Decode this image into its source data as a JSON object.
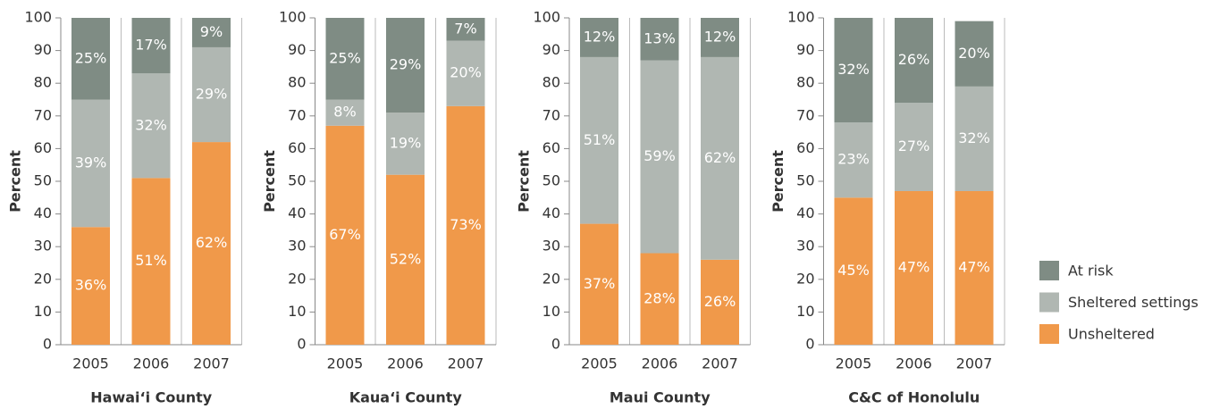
{
  "chart_data": [
    {
      "type": "bar",
      "stacked": true,
      "title": "Hawai‘i County",
      "ylabel": "Percent",
      "categories": [
        "2005",
        "2006",
        "2007"
      ],
      "ylim": [
        0,
        100
      ],
      "yticks": [
        0,
        10,
        20,
        30,
        40,
        50,
        60,
        70,
        80,
        90,
        100
      ],
      "series": [
        {
          "color": "#f0994a",
          "values": [
            36,
            51,
            62
          ],
          "value_labels": [
            "36%",
            "51%",
            "62%"
          ]
        },
        {
          "color": "#b0b7b2",
          "values": [
            39,
            32,
            29
          ],
          "value_labels": [
            "39%",
            "32%",
            "29%"
          ]
        },
        {
          "color": "#7f8c84",
          "values": [
            25,
            17,
            9
          ],
          "value_labels": [
            "25%",
            "17%",
            "9%"
          ]
        }
      ]
    },
    {
      "type": "bar",
      "stacked": true,
      "title": "Kaua‘i County",
      "ylabel": "Percent",
      "categories": [
        "2005",
        "2006",
        "2007"
      ],
      "ylim": [
        0,
        100
      ],
      "yticks": [
        0,
        10,
        20,
        30,
        40,
        50,
        60,
        70,
        80,
        90,
        100
      ],
      "series": [
        {
          "color": "#f0994a",
          "values": [
            67,
            52,
            73
          ],
          "value_labels": [
            "67%",
            "52%",
            "73%"
          ]
        },
        {
          "color": "#b0b7b2",
          "values": [
            8,
            19,
            20
          ],
          "value_labels": [
            "8%",
            "19%",
            "20%"
          ]
        },
        {
          "color": "#7f8c84",
          "values": [
            25,
            29,
            7
          ],
          "value_labels": [
            "25%",
            "29%",
            "7%"
          ]
        }
      ]
    },
    {
      "type": "bar",
      "stacked": true,
      "title": "Maui County",
      "ylabel": "Percent",
      "categories": [
        "2005",
        "2006",
        "2007"
      ],
      "ylim": [
        0,
        100
      ],
      "yticks": [
        0,
        10,
        20,
        30,
        40,
        50,
        60,
        70,
        80,
        90,
        100
      ],
      "series": [
        {
          "color": "#f0994a",
          "values": [
            37,
            28,
            26
          ],
          "value_labels": [
            "37%",
            "28%",
            "26%"
          ]
        },
        {
          "color": "#b0b7b2",
          "values": [
            51,
            59,
            62
          ],
          "value_labels": [
            "51%",
            "59%",
            "62%"
          ]
        },
        {
          "color": "#7f8c84",
          "values": [
            12,
            13,
            12
          ],
          "value_labels": [
            "12%",
            "13%",
            "12%"
          ]
        }
      ]
    },
    {
      "type": "bar",
      "stacked": true,
      "title": "C&C of Honolulu",
      "ylabel": "Percent",
      "categories": [
        "2005",
        "2006",
        "2007"
      ],
      "ylim": [
        0,
        100
      ],
      "yticks": [
        0,
        10,
        20,
        30,
        40,
        50,
        60,
        70,
        80,
        90,
        100
      ],
      "series": [
        {
          "name": "Unsheltered",
          "color": "#f0994a",
          "values": [
            45,
            47,
            47
          ],
          "value_labels": [
            "45%",
            "47%",
            "47%"
          ]
        },
        {
          "name": "Sheltered settings",
          "color": "#b0b7b2",
          "values": [
            23,
            27,
            32
          ],
          "value_labels": [
            "23%",
            "27%",
            "32%"
          ]
        },
        {
          "name": "At risk",
          "color": "#7f8c84",
          "values": [
            32,
            26,
            20
          ],
          "value_labels": [
            "32%",
            "26%",
            "20%"
          ]
        }
      ]
    }
  ]
}
